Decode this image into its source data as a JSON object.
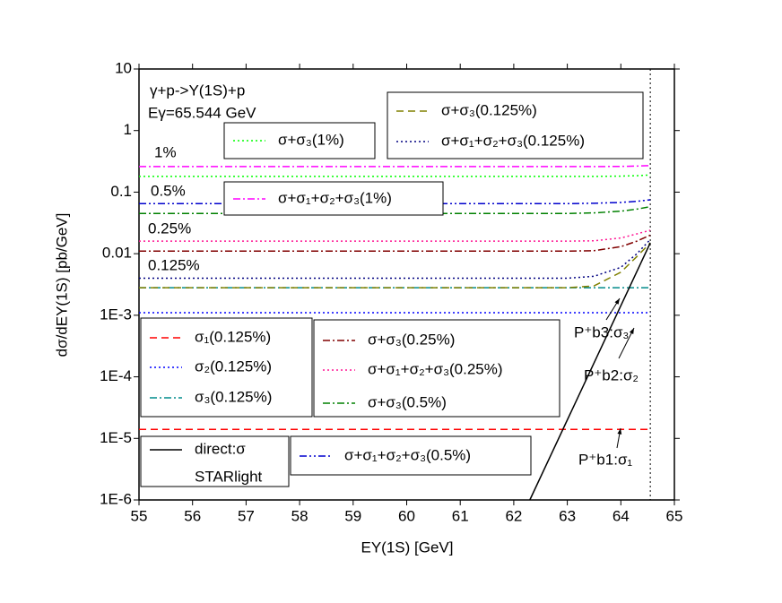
{
  "chart_data": {
    "type": "line",
    "x_label": "EΥ(1S) [GeV]",
    "y_label": "dσ/dEΥ(1S) [pb/GeV]",
    "log_y": true,
    "xlim": [
      55,
      65
    ],
    "ylim": [
      1e-06,
      10
    ],
    "xticks": [
      55,
      56,
      57,
      58,
      59,
      60,
      61,
      62,
      63,
      64,
      65
    ],
    "yticks": [
      10,
      1,
      0.1,
      0.01,
      {
        "value": 0.001,
        "label": "1E-3"
      },
      {
        "value": 0.0001,
        "label": "1E-4"
      },
      {
        "value": 1e-05,
        "label": "1E-5"
      },
      {
        "value": 1e-06,
        "label": "1E-6"
      }
    ],
    "threshold_x": 64.55,
    "x": [
      55,
      56,
      57,
      58,
      59,
      60,
      61,
      62,
      63,
      63.5,
      64,
      64.3,
      64.55
    ],
    "series": [
      {
        "name": "σ₁(0.125%)",
        "color": "#ff0000",
        "style": "dash",
        "values": [
          1.4e-05,
          1.4e-05,
          1.4e-05,
          1.4e-05,
          1.4e-05,
          1.4e-05,
          1.4e-05,
          1.4e-05,
          1.4e-05,
          1.4e-05,
          1.4e-05,
          1.4e-05,
          1.4e-05
        ]
      },
      {
        "name": "σ₂(0.125%)",
        "color": "#0000ff",
        "style": "dot",
        "values": [
          0.0011,
          0.0011,
          0.0011,
          0.0011,
          0.0011,
          0.0011,
          0.0011,
          0.0011,
          0.0011,
          0.0011,
          0.0011,
          0.0011,
          0.0011
        ]
      },
      {
        "name": "σ₃(0.125%)",
        "color": "#008b8b",
        "style": "dashdot",
        "values": [
          0.0028,
          0.0028,
          0.0028,
          0.0028,
          0.0028,
          0.0028,
          0.0028,
          0.0028,
          0.0028,
          0.0028,
          0.0028,
          0.0028,
          0.0028
        ]
      },
      {
        "name": "σ+σ₃(0.125%)",
        "color": "#808000",
        "style": "dash",
        "values": [
          0.0028,
          0.0028,
          0.0028,
          0.0028,
          0.0028,
          0.0028,
          0.0028,
          0.0028,
          0.0028,
          0.003,
          0.005,
          0.009,
          0.015
        ]
      },
      {
        "name": "σ+σ₁+σ₂+σ₃(0.125%)",
        "color": "#000080",
        "style": "dot",
        "values": [
          0.004,
          0.004,
          0.004,
          0.004,
          0.004,
          0.004,
          0.004,
          0.004,
          0.004,
          0.0043,
          0.006,
          0.01,
          0.017
        ]
      },
      {
        "name": "σ+σ₃(0.25%)",
        "color": "#800000",
        "style": "dashdot",
        "values": [
          0.011,
          0.011,
          0.011,
          0.011,
          0.011,
          0.011,
          0.011,
          0.011,
          0.011,
          0.0112,
          0.013,
          0.016,
          0.02
        ]
      },
      {
        "name": "σ+σ₁+σ₂+σ₃(0.25%)",
        "color": "#ff1493",
        "style": "dot",
        "values": [
          0.016,
          0.016,
          0.016,
          0.016,
          0.016,
          0.016,
          0.016,
          0.016,
          0.016,
          0.0162,
          0.018,
          0.021,
          0.024
        ]
      },
      {
        "name": "σ+σ₃(0.5%)",
        "color": "#008000",
        "style": "dashdot",
        "values": [
          0.045,
          0.045,
          0.045,
          0.045,
          0.045,
          0.045,
          0.045,
          0.045,
          0.045,
          0.046,
          0.049,
          0.053,
          0.058
        ]
      },
      {
        "name": "σ+σ₁+σ₂+σ₃(0.5%)",
        "color": "#0000cd",
        "style": "dashdotdot",
        "values": [
          0.065,
          0.065,
          0.065,
          0.065,
          0.065,
          0.065,
          0.065,
          0.065,
          0.065,
          0.066,
          0.068,
          0.071,
          0.075
        ]
      },
      {
        "name": "σ+σ₃(1%)",
        "color": "#00ff00",
        "style": "dot",
        "values": [
          0.18,
          0.18,
          0.18,
          0.18,
          0.18,
          0.18,
          0.18,
          0.18,
          0.18,
          0.18,
          0.182,
          0.185,
          0.19
        ]
      },
      {
        "name": "σ+σ₁+σ₂+σ₃(1%)",
        "color": "#ff00ff",
        "style": "dashdot",
        "values": [
          0.26,
          0.26,
          0.26,
          0.26,
          0.26,
          0.26,
          0.26,
          0.26,
          0.26,
          0.26,
          0.262,
          0.265,
          0.27
        ]
      },
      {
        "name": "direct:σ",
        "color": "#000000",
        "style": "solid",
        "x": [
          62.3,
          64.55
        ],
        "values": [
          1e-06,
          0.015
        ]
      }
    ],
    "legend_note": "STARlight",
    "annotations": [
      "γ+p->Υ(1S)+p",
      "Eγ=65.544 GeV",
      "1%",
      "0.5%",
      "0.25%",
      "0.125%",
      "P⁺b3:σ₃",
      "P⁺b2:σ₂",
      "P⁺b1:σ₁"
    ]
  }
}
